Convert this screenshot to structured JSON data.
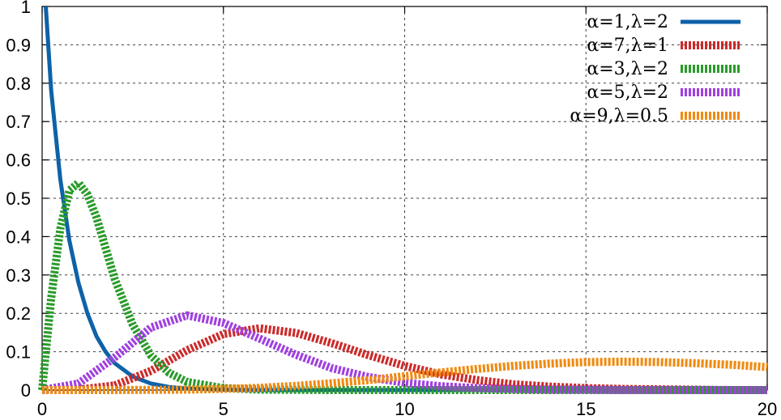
{
  "chart_data": {
    "type": "line",
    "title": "",
    "xlabel": "",
    "ylabel": "",
    "xlim": [
      0,
      20
    ],
    "ylim": [
      0,
      1
    ],
    "grid": true,
    "legend_position": "top-right",
    "x_ticks": [
      "0",
      "5",
      "10",
      "15",
      "20"
    ],
    "y_ticks": [
      "0",
      "0.1",
      "0.2",
      "0.3",
      "0.4",
      "0.5",
      "0.6",
      "0.7",
      "0.8",
      "0.9",
      "1"
    ],
    "series": [
      {
        "name": "α=1,λ=2",
        "color": "#0e62a8",
        "style": "solid",
        "x": [
          0.1,
          0.25,
          0.5,
          0.75,
          1,
          1.25,
          1.5,
          1.75,
          2,
          2.5,
          3,
          3.5,
          4,
          5,
          6,
          8,
          10,
          12,
          15,
          18,
          20
        ],
        "y": [
          1.0,
          0.78,
          0.55,
          0.39,
          0.28,
          0.2,
          0.14,
          0.1,
          0.07,
          0.035,
          0.017,
          0.008,
          0.004,
          0.001,
          0.0,
          0.0,
          0.0,
          0.0,
          0.0,
          0.0,
          0.0
        ]
      },
      {
        "name": "α=7,λ=1",
        "color": "#cc2a2a",
        "style": "dashed",
        "x": [
          0,
          1,
          2,
          3,
          4,
          5,
          6,
          7,
          8,
          9,
          10,
          11,
          12,
          13,
          14,
          15,
          16,
          17,
          18,
          19,
          20
        ],
        "y": [
          0.0,
          0.001,
          0.012,
          0.05,
          0.104,
          0.146,
          0.161,
          0.149,
          0.122,
          0.091,
          0.063,
          0.041,
          0.026,
          0.015,
          0.009,
          0.005,
          0.003,
          0.002,
          0.001,
          0.0,
          0.0
        ]
      },
      {
        "name": "α=3,λ=2",
        "color": "#2a9b2a",
        "style": "dashed",
        "x": [
          0,
          0.25,
          0.5,
          0.75,
          1,
          1.25,
          1.5,
          1.75,
          2,
          2.5,
          3,
          3.5,
          4,
          5,
          6,
          8,
          10,
          12,
          15,
          18,
          20
        ],
        "y": [
          0.0,
          0.24,
          0.42,
          0.52,
          0.54,
          0.51,
          0.45,
          0.37,
          0.29,
          0.17,
          0.09,
          0.045,
          0.021,
          0.005,
          0.001,
          0.0,
          0.0,
          0.0,
          0.0,
          0.0,
          0.0
        ]
      },
      {
        "name": "α=5,λ=2",
        "color": "#a040e0",
        "style": "dashed",
        "x": [
          0,
          1,
          2,
          3,
          4,
          5,
          6,
          7,
          8,
          9,
          10,
          11,
          12,
          13,
          14,
          15,
          16,
          17,
          18,
          19,
          20
        ],
        "y": [
          0.0,
          0.017,
          0.085,
          0.163,
          0.195,
          0.175,
          0.134,
          0.092,
          0.057,
          0.034,
          0.019,
          0.01,
          0.005,
          0.003,
          0.001,
          0.001,
          0.0,
          0.0,
          0.0,
          0.0,
          0.0
        ]
      },
      {
        "name": "α=9,λ=0.5",
        "color": "#f08a10",
        "style": "dashed",
        "x": [
          0,
          2,
          4,
          5,
          6,
          7,
          8,
          9,
          10,
          11,
          12,
          13,
          14,
          15,
          16,
          17,
          18,
          19,
          20
        ],
        "y": [
          0.0,
          0.0,
          0.001,
          0.003,
          0.006,
          0.011,
          0.018,
          0.026,
          0.036,
          0.046,
          0.055,
          0.063,
          0.069,
          0.073,
          0.074,
          0.073,
          0.07,
          0.066,
          0.06
        ]
      }
    ]
  }
}
